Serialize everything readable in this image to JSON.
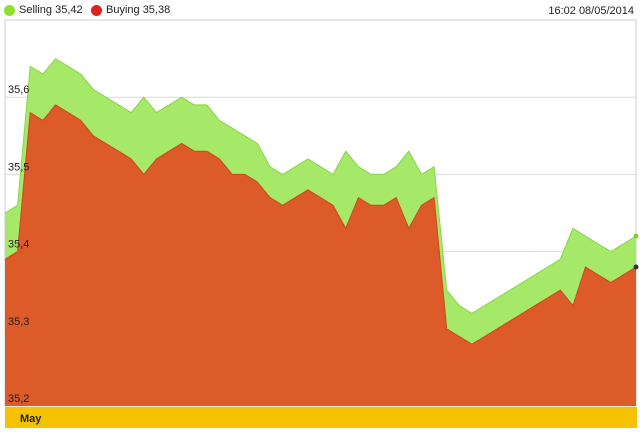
{
  "legend": {
    "selling_label": "Selling 35,42",
    "buying_label": "Buying 35,38",
    "selling_color": "#8ee02e",
    "buying_color": "#e02020"
  },
  "timestamp": "16:02 08/05/2014",
  "chart_data": {
    "type": "area",
    "title": "",
    "xlabel": "",
    "ylabel": "",
    "ylim": [
      35.2,
      35.7
    ],
    "yticks": [
      35.2,
      35.3,
      35.4,
      35.5,
      35.6
    ],
    "ytick_labels": [
      "35,2",
      "35,3",
      "35,4",
      "35,5",
      "35,6"
    ],
    "x_band_label": "May",
    "grid": true,
    "legend_position": "top-left",
    "series": [
      {
        "name": "Selling 35,42",
        "color": "#a6e868",
        "values": [
          35.45,
          35.46,
          35.64,
          35.63,
          35.65,
          35.64,
          35.63,
          35.61,
          35.6,
          35.59,
          35.58,
          35.6,
          35.58,
          35.59,
          35.6,
          35.59,
          35.59,
          35.57,
          35.56,
          35.55,
          35.54,
          35.51,
          35.5,
          35.51,
          35.52,
          35.51,
          35.5,
          35.53,
          35.51,
          35.5,
          35.5,
          35.51,
          35.53,
          35.5,
          35.51,
          35.35,
          35.33,
          35.32,
          35.33,
          35.34,
          35.35,
          35.36,
          35.37,
          35.38,
          35.39,
          35.43,
          35.42,
          35.41,
          35.4,
          35.41,
          35.42
        ]
      },
      {
        "name": "Buying 35,38",
        "color": "#dd5a29",
        "values": [
          35.39,
          35.4,
          35.58,
          35.57,
          35.59,
          35.58,
          35.57,
          35.55,
          35.54,
          35.53,
          35.52,
          35.5,
          35.52,
          35.53,
          35.54,
          35.53,
          35.53,
          35.52,
          35.5,
          35.5,
          35.49,
          35.47,
          35.46,
          35.47,
          35.48,
          35.47,
          35.46,
          35.43,
          35.47,
          35.46,
          35.46,
          35.47,
          35.43,
          35.46,
          35.47,
          35.3,
          35.29,
          35.28,
          35.29,
          35.3,
          35.31,
          35.32,
          35.33,
          35.34,
          35.35,
          35.33,
          35.38,
          35.37,
          35.36,
          35.37,
          35.38
        ]
      }
    ]
  }
}
